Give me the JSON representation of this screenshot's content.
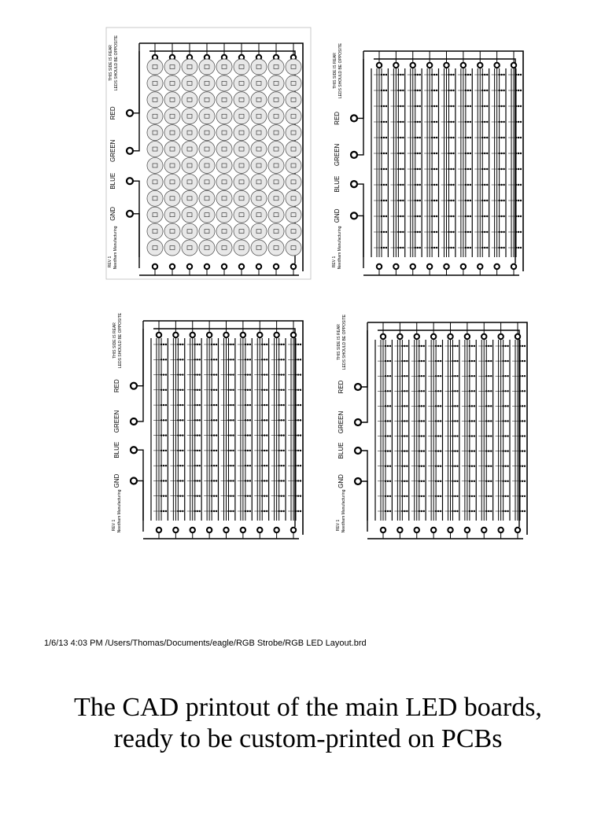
{
  "boards": [
    {
      "variant": "parts",
      "labels": {
        "side_note_1": "THIS SIDE IS REAR",
        "side_note_2": "LEDS SHOULD BE OPPOSITE",
        "red": "RED",
        "green": "GREEN",
        "blue": "BLUE",
        "gnd": "GND",
        "rev": "REV 1",
        "maker": "Needham Manufacturing"
      }
    },
    {
      "variant": "traces",
      "labels": {
        "side_note_1": "THIS SIDE IS REAR",
        "side_note_2": "LEDS SHOULD BE OPPOSITE",
        "red": "RED",
        "green": "GREEN",
        "blue": "BLUE",
        "gnd": "GND",
        "rev": "REV 1",
        "maker": "Needham Manufacturing"
      }
    },
    {
      "variant": "traces",
      "labels": {
        "side_note_1": "THIS SIDE IS REAR",
        "side_note_2": "LEDS SHOULD BE OPPOSITE",
        "red": "RED",
        "green": "GREEN",
        "blue": "BLUE",
        "gnd": "GND",
        "rev": "REV 1",
        "maker": "Needham Manufacturing"
      }
    },
    {
      "variant": "traces",
      "labels": {
        "side_note_1": "THIS SIDE IS REAR",
        "side_note_2": "LEDS SHOULD BE OPPOSITE",
        "red": "RED",
        "green": "GREEN",
        "blue": "BLUE",
        "gnd": "GND",
        "rev": "REV 1",
        "maker": "Needham Manufacturing"
      }
    }
  ],
  "footer": {
    "print_info": "1/6/13 4:03 PM  /Users/Thomas/Documents/eagle/RGB Strobe/RGB LED Layout.brd"
  },
  "caption": {
    "line1": "The CAD printout of the main LED boards,",
    "line2": "ready to be custom-printed on PCBs"
  }
}
